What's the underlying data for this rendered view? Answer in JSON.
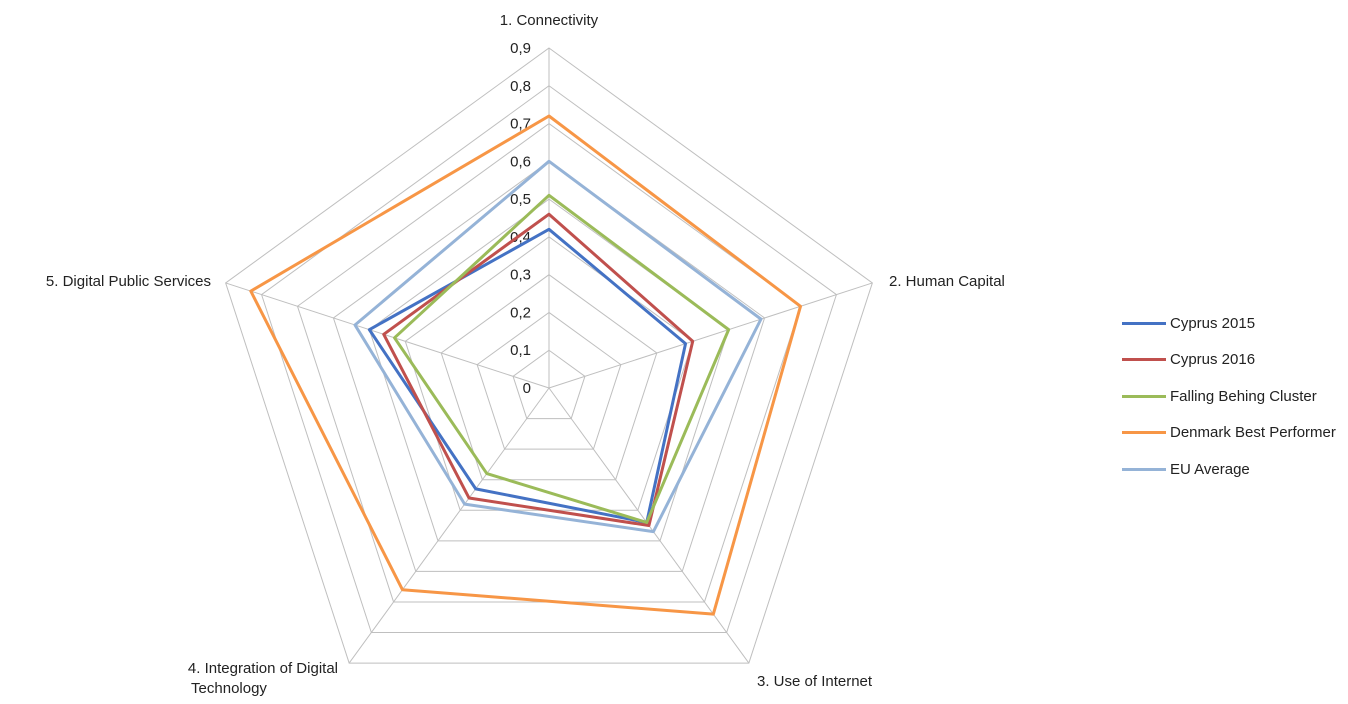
{
  "chart_data": {
    "type": "radar",
    "axes": [
      "1. Connectivity",
      "2. Human Capital",
      "3. Use of Internet",
      "4. Integration of Digital Technology",
      "5. Digital Public Services"
    ],
    "axis_label_lines": [
      [
        "1. Connectivity"
      ],
      [
        "2. Human Capital"
      ],
      [
        "3. Use of Internet"
      ],
      [
        "4. Integration of Digital",
        "Technology"
      ],
      [
        "5. Digital Public Services"
      ]
    ],
    "ticks": [
      "0",
      "0,1",
      "0,2",
      "0,3",
      "0,4",
      "0,5",
      "0,6",
      "0,7",
      "0,8",
      "0,9"
    ],
    "rmax": 0.9,
    "series": [
      {
        "name": "Cyprus 2015",
        "color": "#4472C4",
        "values": [
          0.42,
          0.38,
          0.44,
          0.33,
          0.5
        ]
      },
      {
        "name": "Cyprus 2016",
        "color": "#C0504D",
        "values": [
          0.46,
          0.4,
          0.45,
          0.36,
          0.46
        ]
      },
      {
        "name": "Falling Behing Cluster",
        "color": "#9BBB59",
        "values": [
          0.51,
          0.5,
          0.44,
          0.28,
          0.43
        ]
      },
      {
        "name": "Denmark Best Performer",
        "color": "#F79646",
        "values": [
          0.72,
          0.7,
          0.74,
          0.66,
          0.83
        ]
      },
      {
        "name": "EU Average",
        "color": "#95B3D7",
        "values": [
          0.6,
          0.59,
          0.47,
          0.38,
          0.54
        ]
      }
    ],
    "legend_position": "right",
    "grid": true
  }
}
